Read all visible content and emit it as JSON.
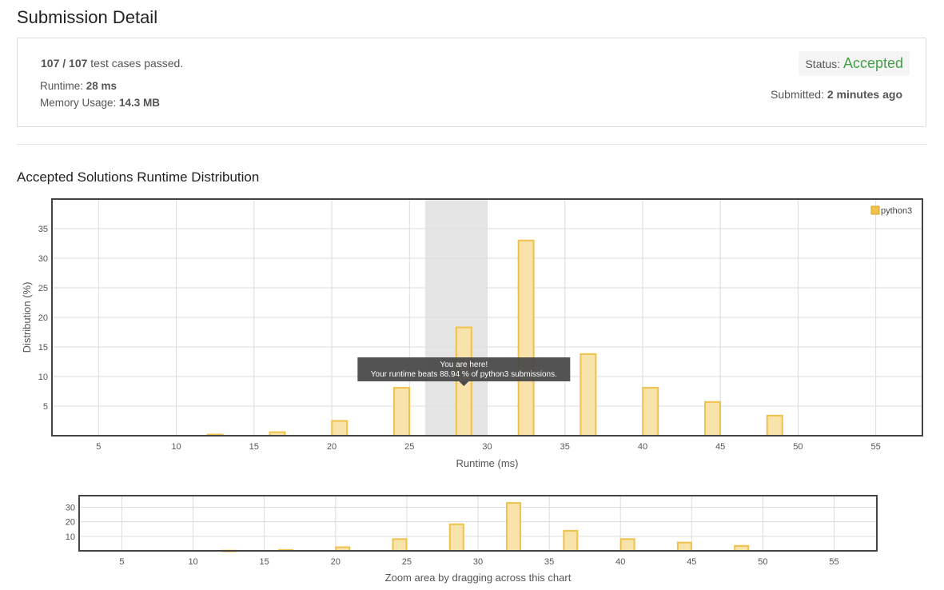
{
  "page": {
    "title": "Submission Detail"
  },
  "detail": {
    "passed": "107 / 107",
    "passed_suffix": " test cases passed.",
    "runtime_label": "Runtime: ",
    "runtime_value": "28 ms",
    "memory_label": "Memory Usage: ",
    "memory_value": "14.3 MB",
    "status_label": "Status: ",
    "status_value": "Accepted",
    "submitted_label": "Submitted: ",
    "submitted_value": "2 minutes ago"
  },
  "section": {
    "title": "Accepted Solutions Runtime Distribution"
  },
  "colors": {
    "bar_fill": "#f8e3ab",
    "bar_stroke": "#f0c14b",
    "highlight": "#e0e0e0",
    "accepted": "#43a047",
    "tooltip_bg": "#4a4a4a"
  },
  "chart_data": [
    {
      "type": "bar",
      "ylabel": "Distribution (%)",
      "xlabel": "Runtime (ms)",
      "legend": "python3",
      "legend_position": "top-right",
      "grid": true,
      "xlim": [
        2,
        58
      ],
      "ylim": [
        0,
        40
      ],
      "xticks": [
        5,
        10,
        15,
        20,
        25,
        30,
        35,
        40,
        45,
        50,
        55
      ],
      "yticks": [
        5,
        10,
        15,
        20,
        25,
        30,
        35
      ],
      "x": [
        12.5,
        16.5,
        20.5,
        24.5,
        28.5,
        32.5,
        36.5,
        40.5,
        44.5,
        48.5
      ],
      "values": [
        0.2,
        0.6,
        2.5,
        8.1,
        18.3,
        33.0,
        13.8,
        8.1,
        5.7,
        3.4
      ],
      "highlight_range": [
        26,
        30
      ],
      "tooltip": {
        "line1": "You are here!",
        "line2": "Your runtime beats 88.94 % of python3 submissions."
      }
    },
    {
      "type": "bar",
      "xlabel": "Zoom area by dragging across this chart",
      "grid": true,
      "xlim": [
        2,
        58
      ],
      "ylim": [
        0,
        38
      ],
      "xticks": [
        5,
        10,
        15,
        20,
        25,
        30,
        35,
        40,
        45,
        50,
        55
      ],
      "yticks": [
        10,
        20,
        30
      ],
      "x": [
        12.5,
        16.5,
        20.5,
        24.5,
        28.5,
        32.5,
        36.5,
        40.5,
        44.5,
        48.5
      ],
      "values": [
        0.2,
        0.6,
        2.5,
        8.1,
        18.3,
        33.0,
        13.8,
        8.1,
        5.7,
        3.4
      ]
    }
  ]
}
